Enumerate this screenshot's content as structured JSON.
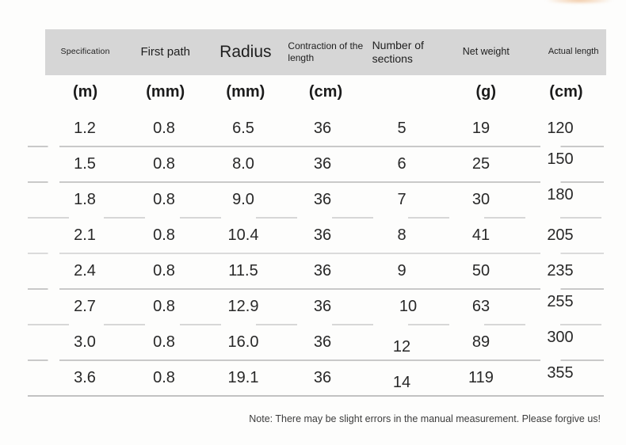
{
  "chart_data": {
    "type": "table",
    "title": "",
    "columns": [
      "Specification",
      "First path",
      "Radius",
      "Contraction of the length",
      "Number of sections",
      "Net weight",
      "Actual length"
    ],
    "units": [
      "(m)",
      "(mm)",
      "(mm)",
      "(cm)",
      "",
      "(g)",
      "(cm)"
    ],
    "rows": [
      [
        "1.2",
        "0.8",
        "6.5",
        "36",
        "5",
        "19",
        "120"
      ],
      [
        "1.5",
        "0.8",
        "8.0",
        "36",
        "6",
        "25",
        "150"
      ],
      [
        "1.8",
        "0.8",
        "9.0",
        "36",
        "7",
        "30",
        "180"
      ],
      [
        "2.1",
        "0.8",
        "10.4",
        "36",
        "8",
        "41",
        "205"
      ],
      [
        "2.4",
        "0.8",
        "11.5",
        "36",
        "9",
        "50",
        "235"
      ],
      [
        "2.7",
        "0.8",
        "12.9",
        "36",
        "10",
        "63",
        "255"
      ],
      [
        "3.0",
        "0.8",
        "16.0",
        "36",
        "12",
        "89",
        "300"
      ],
      [
        "3.6",
        "0.8",
        "19.1",
        "36",
        "14",
        "119",
        "355"
      ]
    ]
  },
  "note": "Note: There may be slight errors in the manual measurement. Please forgive us!",
  "colors": {
    "header_bg": "#d6d6d6",
    "separator": "#c9c9c9",
    "accent_corner": "#eeba8a",
    "text": "#222222",
    "background": "#fdfdfc"
  }
}
